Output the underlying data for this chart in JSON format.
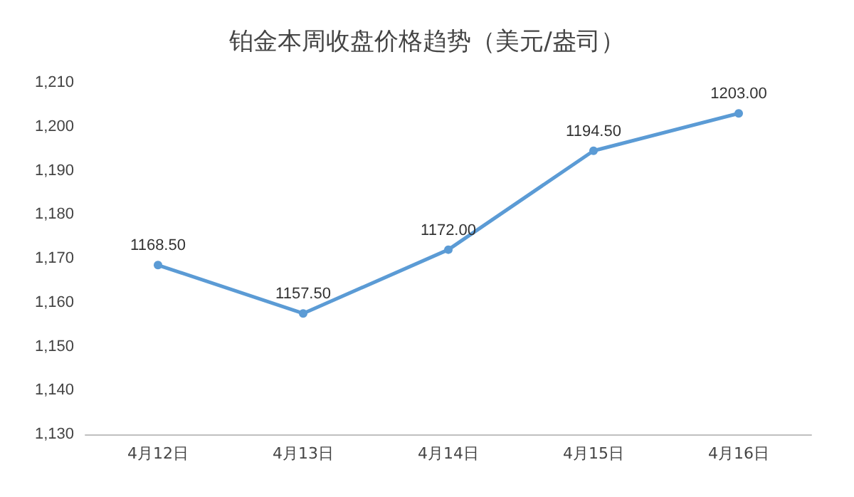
{
  "chart_data": {
    "type": "line",
    "title": "铂金本周收盘价格趋势（美元/盎司）",
    "categories": [
      "4月12日",
      "4月13日",
      "4月14日",
      "4月15日",
      "4月16日"
    ],
    "series": [
      {
        "color": "#5b9bd5",
        "values": [
          1168.5,
          1157.5,
          1172,
          1194.5,
          1203
        ],
        "value_labels": [
          "1168.50",
          "1157.50",
          "1172.00",
          "1194.50",
          "1203.00"
        ]
      }
    ],
    "ylim": [
      1130,
      1210
    ],
    "yticks": [
      {
        "value": 1130,
        "label": "1,130"
      },
      {
        "value": 1140,
        "label": "1,140"
      },
      {
        "value": 1150,
        "label": "1,150"
      },
      {
        "value": 1160,
        "label": "1,160"
      },
      {
        "value": 1170,
        "label": "1,170"
      },
      {
        "value": 1180,
        "label": "1,180"
      },
      {
        "value": 1190,
        "label": "1,190"
      },
      {
        "value": 1200,
        "label": "1,200"
      },
      {
        "value": 1210,
        "label": "1,210"
      }
    ],
    "grid": false,
    "marker": "circle",
    "line_style": "solid"
  }
}
